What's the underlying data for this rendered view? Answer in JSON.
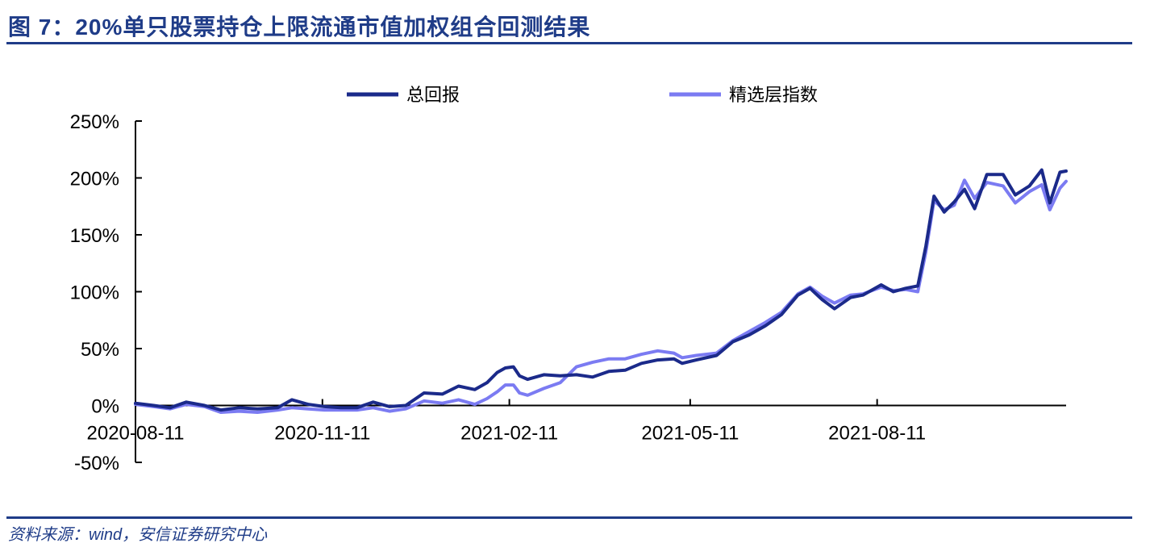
{
  "header": {
    "figure_title": "图 7：20%单只股票持仓上限流通市值加权组合回测结果"
  },
  "footer": {
    "source": "资料来源：wind，安信证券研究中心"
  },
  "colors": {
    "rule": "#1f3c88",
    "total_return": "#1b2a8a",
    "index": "#7b7bf2"
  },
  "chart_data": {
    "type": "line",
    "title": "",
    "xlabel": "",
    "ylabel": "",
    "legend_position": "top-center",
    "grid": false,
    "ylim": [
      -0.5,
      2.5
    ],
    "y_ticks": [
      -0.5,
      0,
      0.5,
      1.0,
      1.5,
      2.0,
      2.5
    ],
    "y_tick_labels": [
      "-50%",
      "0%",
      "50%",
      "100%",
      "150%",
      "200%",
      "250%"
    ],
    "xlim": [
      "2020-08-11",
      "2021-11-12"
    ],
    "x_ticks": [
      "2020-08-11",
      "2020-11-11",
      "2021-02-11",
      "2021-05-11",
      "2021-08-11"
    ],
    "x_tick_labels": [
      "2020-08-11",
      "2020-11-11",
      "2021-02-11",
      "2021-05-11",
      "2021-08-11"
    ],
    "series": [
      {
        "name": "总回报",
        "color": "#1b2a8a",
        "points": [
          [
            "2020-08-11",
            0.02
          ],
          [
            "2020-08-20",
            0.0
          ],
          [
            "2020-08-28",
            -0.02
          ],
          [
            "2020-09-05",
            0.03
          ],
          [
            "2020-09-14",
            0.0
          ],
          [
            "2020-09-22",
            -0.04
          ],
          [
            "2020-10-01",
            -0.02
          ],
          [
            "2020-10-10",
            -0.03
          ],
          [
            "2020-10-20",
            -0.02
          ],
          [
            "2020-10-27",
            0.05
          ],
          [
            "2020-11-04",
            0.01
          ],
          [
            "2020-11-12",
            -0.01
          ],
          [
            "2020-11-20",
            -0.02
          ],
          [
            "2020-11-28",
            -0.02
          ],
          [
            "2020-12-06",
            0.03
          ],
          [
            "2020-12-14",
            -0.01
          ],
          [
            "2020-12-22",
            0.0
          ],
          [
            "2020-12-31",
            0.11
          ],
          [
            "2021-01-09",
            0.1
          ],
          [
            "2021-01-17",
            0.17
          ],
          [
            "2021-01-25",
            0.14
          ],
          [
            "2021-01-31",
            0.2
          ],
          [
            "2021-02-05",
            0.29
          ],
          [
            "2021-02-09",
            0.33
          ],
          [
            "2021-02-13",
            0.34
          ],
          [
            "2021-02-16",
            0.26
          ],
          [
            "2021-02-20",
            0.23
          ],
          [
            "2021-02-28",
            0.27
          ],
          [
            "2021-03-08",
            0.26
          ],
          [
            "2021-03-16",
            0.27
          ],
          [
            "2021-03-24",
            0.25
          ],
          [
            "2021-04-01",
            0.3
          ],
          [
            "2021-04-09",
            0.31
          ],
          [
            "2021-04-17",
            0.37
          ],
          [
            "2021-04-25",
            0.4
          ],
          [
            "2021-05-03",
            0.41
          ],
          [
            "2021-05-07",
            0.37
          ],
          [
            "2021-05-14",
            0.4
          ],
          [
            "2021-05-24",
            0.44
          ],
          [
            "2021-06-01",
            0.56
          ],
          [
            "2021-06-09",
            0.62
          ],
          [
            "2021-06-17",
            0.7
          ],
          [
            "2021-06-25",
            0.8
          ],
          [
            "2021-07-03",
            0.97
          ],
          [
            "2021-07-09",
            1.03
          ],
          [
            "2021-07-15",
            0.93
          ],
          [
            "2021-07-21",
            0.85
          ],
          [
            "2021-07-29",
            0.95
          ],
          [
            "2021-08-04",
            0.97
          ],
          [
            "2021-08-13",
            1.06
          ],
          [
            "2021-08-19",
            1.0
          ],
          [
            "2021-08-25",
            1.03
          ],
          [
            "2021-08-31",
            1.05
          ],
          [
            "2021-09-04",
            1.4
          ],
          [
            "2021-09-08",
            1.84
          ],
          [
            "2021-09-13",
            1.7
          ],
          [
            "2021-09-18",
            1.79
          ],
          [
            "2021-09-23",
            1.9
          ],
          [
            "2021-09-28",
            1.73
          ],
          [
            "2021-10-04",
            2.03
          ],
          [
            "2021-10-12",
            2.03
          ],
          [
            "2021-10-18",
            1.85
          ],
          [
            "2021-10-25",
            1.93
          ],
          [
            "2021-10-31",
            2.07
          ],
          [
            "2021-11-04",
            1.78
          ],
          [
            "2021-11-09",
            2.05
          ],
          [
            "2021-11-12",
            2.06
          ]
        ]
      },
      {
        "name": "精选层指数",
        "color": "#7b7bf2",
        "points": [
          [
            "2020-08-11",
            0.01
          ],
          [
            "2020-08-20",
            -0.01
          ],
          [
            "2020-08-28",
            -0.03
          ],
          [
            "2020-09-05",
            0.01
          ],
          [
            "2020-09-14",
            -0.01
          ],
          [
            "2020-09-22",
            -0.06
          ],
          [
            "2020-10-01",
            -0.05
          ],
          [
            "2020-10-10",
            -0.06
          ],
          [
            "2020-10-20",
            -0.04
          ],
          [
            "2020-10-27",
            -0.02
          ],
          [
            "2020-11-04",
            -0.03
          ],
          [
            "2020-11-12",
            -0.04
          ],
          [
            "2020-11-20",
            -0.04
          ],
          [
            "2020-11-28",
            -0.04
          ],
          [
            "2020-12-06",
            -0.02
          ],
          [
            "2020-12-14",
            -0.05
          ],
          [
            "2020-12-22",
            -0.03
          ],
          [
            "2020-12-31",
            0.04
          ],
          [
            "2021-01-09",
            0.02
          ],
          [
            "2021-01-17",
            0.05
          ],
          [
            "2021-01-25",
            0.01
          ],
          [
            "2021-01-31",
            0.06
          ],
          [
            "2021-02-05",
            0.12
          ],
          [
            "2021-02-09",
            0.18
          ],
          [
            "2021-02-13",
            0.18
          ],
          [
            "2021-02-16",
            0.11
          ],
          [
            "2021-02-20",
            0.09
          ],
          [
            "2021-02-28",
            0.15
          ],
          [
            "2021-03-08",
            0.2
          ],
          [
            "2021-03-16",
            0.34
          ],
          [
            "2021-03-24",
            0.38
          ],
          [
            "2021-04-01",
            0.41
          ],
          [
            "2021-04-09",
            0.41
          ],
          [
            "2021-04-17",
            0.45
          ],
          [
            "2021-04-25",
            0.48
          ],
          [
            "2021-05-03",
            0.46
          ],
          [
            "2021-05-07",
            0.42
          ],
          [
            "2021-05-14",
            0.44
          ],
          [
            "2021-05-24",
            0.46
          ],
          [
            "2021-06-01",
            0.57
          ],
          [
            "2021-06-09",
            0.65
          ],
          [
            "2021-06-17",
            0.73
          ],
          [
            "2021-06-25",
            0.82
          ],
          [
            "2021-07-03",
            0.98
          ],
          [
            "2021-07-09",
            1.04
          ],
          [
            "2021-07-15",
            0.96
          ],
          [
            "2021-07-21",
            0.9
          ],
          [
            "2021-07-29",
            0.97
          ],
          [
            "2021-08-04",
            0.98
          ],
          [
            "2021-08-13",
            1.04
          ],
          [
            "2021-08-19",
            1.01
          ],
          [
            "2021-08-25",
            1.02
          ],
          [
            "2021-08-31",
            1.0
          ],
          [
            "2021-09-04",
            1.35
          ],
          [
            "2021-09-08",
            1.8
          ],
          [
            "2021-09-13",
            1.72
          ],
          [
            "2021-09-18",
            1.76
          ],
          [
            "2021-09-23",
            1.98
          ],
          [
            "2021-09-28",
            1.82
          ],
          [
            "2021-10-04",
            1.96
          ],
          [
            "2021-10-12",
            1.93
          ],
          [
            "2021-10-18",
            1.78
          ],
          [
            "2021-10-25",
            1.88
          ],
          [
            "2021-10-31",
            1.94
          ],
          [
            "2021-11-04",
            1.72
          ],
          [
            "2021-11-09",
            1.91
          ],
          [
            "2021-11-12",
            1.97
          ]
        ]
      }
    ]
  }
}
